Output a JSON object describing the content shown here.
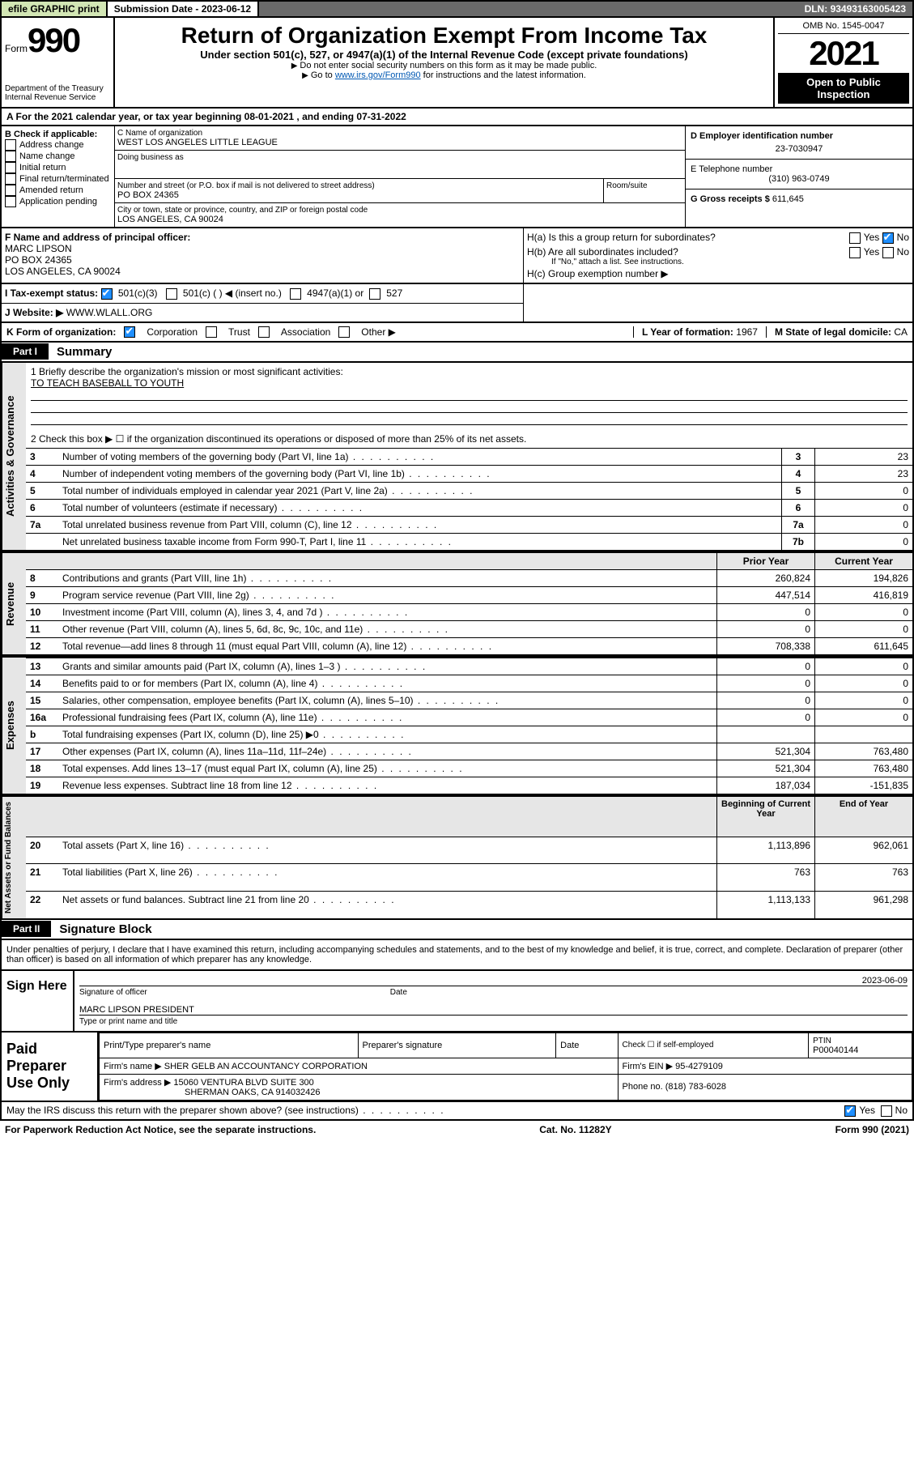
{
  "colors": {
    "accent_blue": "#0058b3",
    "check_blue": "#1f8fff",
    "header_grey": "#6a6a6a",
    "light_green": "#d2e6b4",
    "cell_grey": "#e6e6e6"
  },
  "topbar": {
    "efile": "efile GRAPHIC print",
    "sub_label": "Submission Date - ",
    "sub_date": "2023-06-12",
    "dln_label": "DLN: ",
    "dln": "93493163005423"
  },
  "form": {
    "prefix": "Form",
    "num": "990",
    "title": "Return of Organization Exempt From Income Tax",
    "sub1": "Under section 501(c), 527, or 4947(a)(1) of the Internal Revenue Code (except private foundations)",
    "sub2": "Do not enter social security numbers on this form as it may be made public.",
    "sub3_pre": "Go to ",
    "sub3_link": "www.irs.gov/Form990",
    "sub3_post": " for instructions and the latest information.",
    "dept": "Department of the Treasury",
    "irs": "Internal Revenue Service",
    "omb": "OMB No. 1545-0047",
    "year": "2021",
    "open": "Open to Public Inspection"
  },
  "rowA": {
    "text_pre": "A For the 2021 calendar year, or tax year beginning ",
    "begin": "08-01-2021",
    "mid": " , and ending ",
    "end": "07-31-2022"
  },
  "B": {
    "hdr": "B Check if applicable:",
    "items": [
      "Address change",
      "Name change",
      "Initial return",
      "Final return/terminated",
      "Amended return",
      "Application pending"
    ]
  },
  "C": {
    "lbl_name": "C Name of organization",
    "name": "WEST LOS ANGELES LITTLE LEAGUE",
    "dba_lbl": "Doing business as",
    "dba": "",
    "addr_lbl": "Number and street (or P.O. box if mail is not delivered to street address)",
    "room_lbl": "Room/suite",
    "addr": "PO BOX 24365",
    "city_lbl": "City or town, state or province, country, and ZIP or foreign postal code",
    "city": "LOS ANGELES, CA  90024"
  },
  "D": {
    "lbl": "D Employer identification number",
    "val": "23-7030947"
  },
  "E": {
    "lbl": "E Telephone number",
    "val": "(310) 963-0749"
  },
  "G": {
    "lbl": "G Gross receipts $",
    "val": "611,645"
  },
  "F": {
    "lbl": "F Name and address of principal officer:",
    "name": "MARC LIPSON",
    "addr": "PO BOX 24365",
    "city": "LOS ANGELES, CA  90024"
  },
  "H": {
    "a": "H(a) Is this a group return for subordinates?",
    "a_yes": "Yes",
    "a_no": "No",
    "b": "H(b) Are all subordinates included?",
    "b_yes": "Yes",
    "b_no": "No",
    "b_note": "If \"No,\" attach a list. See instructions.",
    "c": "H(c) Group exemption number ▶"
  },
  "I": {
    "lbl": "I    Tax-exempt status:",
    "o1": "501(c)(3)",
    "o2": "501(c) (   ) ◀ (insert no.)",
    "o3": "4947(a)(1) or",
    "o4": "527"
  },
  "J": {
    "lbl": "J    Website: ▶",
    "val": "WWW.WLALL.ORG"
  },
  "K": {
    "lbl": "K Form of organization:",
    "o1": "Corporation",
    "o2": "Trust",
    "o3": "Association",
    "o4": "Other ▶"
  },
  "L": {
    "lbl": "L Year of formation: ",
    "val": "1967"
  },
  "M": {
    "lbl": "M State of legal domicile: ",
    "val": "CA"
  },
  "part1": {
    "tab": "Part I",
    "title": "Summary"
  },
  "summary": {
    "l1_lbl": "1  Briefly describe the organization's mission or most significant activities:",
    "l1_val": "TO TEACH BASEBALL TO YOUTH",
    "l2": "2  Check this box ▶ ☐  if the organization discontinued its operations or disposed of more than 25% of its net assets.",
    "rows_gov": [
      {
        "n": "3",
        "t": "Number of voting members of the governing body (Part VI, line 1a)",
        "k": "3",
        "v": "23"
      },
      {
        "n": "4",
        "t": "Number of independent voting members of the governing body (Part VI, line 1b)",
        "k": "4",
        "v": "23"
      },
      {
        "n": "5",
        "t": "Total number of individuals employed in calendar year 2021 (Part V, line 2a)",
        "k": "5",
        "v": "0"
      },
      {
        "n": "6",
        "t": "Total number of volunteers (estimate if necessary)",
        "k": "6",
        "v": "0"
      },
      {
        "n": "7a",
        "t": "Total unrelated business revenue from Part VIII, column (C), line 12",
        "k": "7a",
        "v": "0"
      },
      {
        "n": "",
        "t": "Net unrelated business taxable income from Form 990-T, Part I, line 11",
        "k": "7b",
        "v": "0"
      }
    ],
    "hdr_prior": "Prior Year",
    "hdr_curr": "Current Year",
    "rev": [
      {
        "n": "8",
        "t": "Contributions and grants (Part VIII, line 1h)",
        "p": "260,824",
        "c": "194,826"
      },
      {
        "n": "9",
        "t": "Program service revenue (Part VIII, line 2g)",
        "p": "447,514",
        "c": "416,819"
      },
      {
        "n": "10",
        "t": "Investment income (Part VIII, column (A), lines 3, 4, and 7d )",
        "p": "0",
        "c": "0"
      },
      {
        "n": "11",
        "t": "Other revenue (Part VIII, column (A), lines 5, 6d, 8c, 9c, 10c, and 11e)",
        "p": "0",
        "c": "0"
      },
      {
        "n": "12",
        "t": "Total revenue—add lines 8 through 11 (must equal Part VIII, column (A), line 12)",
        "p": "708,338",
        "c": "611,645"
      }
    ],
    "exp": [
      {
        "n": "13",
        "t": "Grants and similar amounts paid (Part IX, column (A), lines 1–3 )",
        "p": "0",
        "c": "0"
      },
      {
        "n": "14",
        "t": "Benefits paid to or for members (Part IX, column (A), line 4)",
        "p": "0",
        "c": "0"
      },
      {
        "n": "15",
        "t": "Salaries, other compensation, employee benefits (Part IX, column (A), lines 5–10)",
        "p": "0",
        "c": "0"
      },
      {
        "n": "16a",
        "t": "Professional fundraising fees (Part IX, column (A), line 11e)",
        "p": "0",
        "c": "0"
      },
      {
        "n": "b",
        "t": "Total fundraising expenses (Part IX, column (D), line 25) ▶0",
        "p": "",
        "c": "",
        "grey": true
      },
      {
        "n": "17",
        "t": "Other expenses (Part IX, column (A), lines 11a–11d, 11f–24e)",
        "p": "521,304",
        "c": "763,480"
      },
      {
        "n": "18",
        "t": "Total expenses. Add lines 13–17 (must equal Part IX, column (A), line 25)",
        "p": "521,304",
        "c": "763,480"
      },
      {
        "n": "19",
        "t": "Revenue less expenses. Subtract line 18 from line 12",
        "p": "187,034",
        "c": "-151,835"
      }
    ],
    "hdr_beg": "Beginning of Current Year",
    "hdr_end": "End of Year",
    "net": [
      {
        "n": "20",
        "t": "Total assets (Part X, line 16)",
        "p": "1,113,896",
        "c": "962,061"
      },
      {
        "n": "21",
        "t": "Total liabilities (Part X, line 26)",
        "p": "763",
        "c": "763"
      },
      {
        "n": "22",
        "t": "Net assets or fund balances. Subtract line 21 from line 20",
        "p": "1,113,133",
        "c": "961,298"
      }
    ],
    "side_gov": "Activities & Governance",
    "side_rev": "Revenue",
    "side_exp": "Expenses",
    "side_net": "Net Assets or Fund Balances"
  },
  "part2": {
    "tab": "Part II",
    "title": "Signature Block"
  },
  "sig": {
    "decl": "Under penalties of perjury, I declare that I have examined this return, including accompanying schedules and statements, and to the best of my knowledge and belief, it is true, correct, and complete. Declaration of preparer (other than officer) is based on all information of which preparer has any knowledge.",
    "sign_here": "Sign Here",
    "sig_of": "Signature of officer",
    "date_lbl": "Date",
    "date": "2023-06-09",
    "name": "MARC LIPSON  PRESIDENT",
    "name_lbl": "Type or print name and title"
  },
  "prep": {
    "hdr": "Paid Preparer Use Only",
    "r1": {
      "c1": "Print/Type preparer's name",
      "c2": "Preparer's signature",
      "c3": "Date",
      "c4_lbl": "Check ☐ if self-employed",
      "c5_lbl": "PTIN",
      "c5": "P00040144"
    },
    "r2": {
      "lbl": "Firm's name    ▶",
      "val": "SHER GELB AN ACCOUNTANCY CORPORATION",
      "ein_lbl": "Firm's EIN ▶",
      "ein": "95-4279109"
    },
    "r3": {
      "lbl": "Firm's address ▶",
      "l1": "15060 VENTURA BLVD SUITE 300",
      "l2": "SHERMAN OAKS, CA  914032426",
      "ph_lbl": "Phone no.",
      "ph": "(818) 783-6028"
    }
  },
  "discuss": {
    "txt": "May the IRS discuss this return with the preparer shown above? (see instructions)",
    "yes": "Yes",
    "no": "No"
  },
  "footer": {
    "l": "For Paperwork Reduction Act Notice, see the separate instructions.",
    "m": "Cat. No. 11282Y",
    "r": "Form 990 (2021)"
  }
}
